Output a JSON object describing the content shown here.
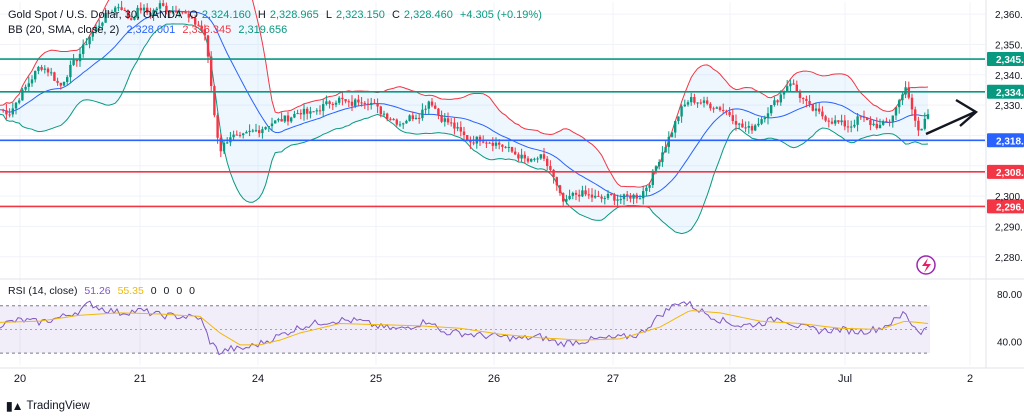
{
  "header": {
    "symbol": "Gold Spot / U.S. Dollar, 30, OANDA",
    "open_label": "O",
    "open": "2,324.160",
    "high_label": "H",
    "high": "2,328.965",
    "low_label": "L",
    "low": "2,323.150",
    "close_label": "C",
    "close": "2,328.460",
    "change": "+4.305 (+0.19%)"
  },
  "bb": {
    "label": "BB (20, SMA, close, 2)",
    "basis": "2,328.001",
    "upper": "2,336.345",
    "lower": "2,319.656",
    "colors": {
      "basis": "#2962ff",
      "upper": "#f23645",
      "lower": "#089981",
      "fill": "#2196f3"
    }
  },
  "rsi_header": {
    "label": "RSI (14, close)",
    "rsi": "51.26",
    "ma": "55.35",
    "extras": [
      "0",
      "0",
      "0",
      "0"
    ]
  },
  "watermark": "TradingView",
  "colors": {
    "up": "#089981",
    "down": "#f23645",
    "rsi": "#7e57c2",
    "rsi_ma": "#f0b90b",
    "support": "#2962ff",
    "resistance_red": "#f23645",
    "resistance_green": "#089981"
  },
  "chart_data": {
    "type": "candlestick",
    "x_ticks": [
      "20",
      "21",
      "24",
      "25",
      "26",
      "27",
      "28",
      "Jul",
      "2"
    ],
    "y_ticks": [
      2280,
      2290,
      2300,
      2310,
      2320,
      2330,
      2340,
      2350,
      2360
    ],
    "y_tick_labels": [
      "2,280.",
      "2,290.",
      "2,300.",
      "2,310.",
      "2,320.",
      "2,330.",
      "2,340.",
      "2,350.",
      "2,360."
    ],
    "ylim": [
      2273,
      2364
    ],
    "horizontal_lines": [
      {
        "label": "2,345.",
        "value": 2345.2,
        "color": "#089981"
      },
      {
        "label": "2,334.",
        "value": 2334.4,
        "color": "#089981"
      },
      {
        "label": "2,318.",
        "value": 2318.4,
        "color": "#2962ff"
      },
      {
        "label": "2,308.",
        "value": 2308.0,
        "color": "#f23645"
      },
      {
        "label": "2,296.",
        "value": 2296.6,
        "color": "#f23645"
      }
    ],
    "close_path": [
      [
        0,
        2328.5
      ],
      [
        10,
        2327.5
      ],
      [
        20,
        2333
      ],
      [
        30,
        2338
      ],
      [
        40,
        2343
      ],
      [
        50,
        2341
      ],
      [
        60,
        2336
      ],
      [
        70,
        2342
      ],
      [
        80,
        2347
      ],
      [
        90,
        2353
      ],
      [
        100,
        2357
      ],
      [
        110,
        2361
      ],
      [
        120,
        2363
      ],
      [
        130,
        2358
      ],
      [
        140,
        2362
      ],
      [
        150,
        2360
      ],
      [
        160,
        2363
      ],
      [
        170,
        2361
      ],
      [
        180,
        2362
      ],
      [
        190,
        2358
      ],
      [
        200,
        2356
      ],
      [
        205,
        2353
      ],
      [
        210,
        2340
      ],
      [
        215,
        2325
      ],
      [
        220,
        2315
      ],
      [
        230,
        2320
      ],
      [
        240,
        2319
      ],
      [
        250,
        2321
      ],
      [
        260,
        2322
      ],
      [
        270,
        2324
      ],
      [
        280,
        2325
      ],
      [
        290,
        2326
      ],
      [
        300,
        2328
      ],
      [
        310,
        2327
      ],
      [
        320,
        2329
      ],
      [
        330,
        2331
      ],
      [
        340,
        2332
      ],
      [
        350,
        2330
      ],
      [
        360,
        2332
      ],
      [
        370,
        2331
      ],
      [
        380,
        2328
      ],
      [
        390,
        2326
      ],
      [
        400,
        2324
      ],
      [
        410,
        2326
      ],
      [
        420,
        2327
      ],
      [
        430,
        2332
      ],
      [
        440,
        2326
      ],
      [
        450,
        2324
      ],
      [
        460,
        2321
      ],
      [
        470,
        2318
      ],
      [
        480,
        2319
      ],
      [
        490,
        2318
      ],
      [
        500,
        2317
      ],
      [
        510,
        2315
      ],
      [
        520,
        2313
      ],
      [
        530,
        2311
      ],
      [
        540,
        2313
      ],
      [
        550,
        2309
      ],
      [
        560,
        2300
      ],
      [
        565,
        2297
      ],
      [
        570,
        2300
      ],
      [
        580,
        2301
      ],
      [
        590,
        2300
      ],
      [
        600,
        2299
      ],
      [
        610,
        2300
      ],
      [
        620,
        2299
      ],
      [
        630,
        2300
      ],
      [
        640,
        2300
      ],
      [
        650,
        2305
      ],
      [
        660,
        2313
      ],
      [
        670,
        2320
      ],
      [
        680,
        2328
      ],
      [
        690,
        2332
      ],
      [
        700,
        2331
      ],
      [
        710,
        2330
      ],
      [
        720,
        2329
      ],
      [
        730,
        2327
      ],
      [
        740,
        2323
      ],
      [
        750,
        2322
      ],
      [
        760,
        2325
      ],
      [
        770,
        2329
      ],
      [
        780,
        2333
      ],
      [
        790,
        2338
      ],
      [
        800,
        2333
      ],
      [
        810,
        2329
      ],
      [
        820,
        2327
      ],
      [
        830,
        2325
      ],
      [
        840,
        2324
      ],
      [
        850,
        2323
      ],
      [
        860,
        2326
      ],
      [
        870,
        2324
      ],
      [
        880,
        2323
      ],
      [
        890,
        2325
      ],
      [
        900,
        2332
      ],
      [
        905,
        2337
      ],
      [
        910,
        2330
      ],
      [
        915,
        2325
      ],
      [
        920,
        2320
      ],
      [
        925,
        2326
      ],
      [
        928,
        2328
      ]
    ],
    "rsi": {
      "label": "RSI (14, close)",
      "levels": [
        80,
        40
      ],
      "band": [
        70,
        30
      ],
      "ylim": [
        20,
        90
      ],
      "path": [
        [
          0,
          54
        ],
        [
          20,
          58
        ],
        [
          40,
          56
        ],
        [
          60,
          60
        ],
        [
          80,
          66
        ],
        [
          90,
          72
        ],
        [
          100,
          68
        ],
        [
          120,
          64
        ],
        [
          140,
          66
        ],
        [
          160,
          62
        ],
        [
          180,
          61
        ],
        [
          200,
          60
        ],
        [
          210,
          40
        ],
        [
          220,
          30
        ],
        [
          230,
          34
        ],
        [
          240,
          33
        ],
        [
          260,
          38
        ],
        [
          280,
          45
        ],
        [
          300,
          52
        ],
        [
          320,
          56
        ],
        [
          340,
          58
        ],
        [
          360,
          57
        ],
        [
          380,
          52
        ],
        [
          400,
          50
        ],
        [
          420,
          55
        ],
        [
          430,
          58
        ],
        [
          440,
          48
        ],
        [
          460,
          47
        ],
        [
          480,
          45
        ],
        [
          500,
          44
        ],
        [
          520,
          42
        ],
        [
          540,
          44
        ],
        [
          560,
          38
        ],
        [
          580,
          40
        ],
        [
          600,
          42
        ],
        [
          620,
          43
        ],
        [
          640,
          46
        ],
        [
          660,
          62
        ],
        [
          680,
          74
        ],
        [
          690,
          71
        ],
        [
          700,
          66
        ],
        [
          720,
          58
        ],
        [
          740,
          53
        ],
        [
          760,
          55
        ],
        [
          780,
          60
        ],
        [
          800,
          52
        ],
        [
          820,
          49
        ],
        [
          840,
          50
        ],
        [
          860,
          48
        ],
        [
          880,
          51
        ],
        [
          900,
          60
        ],
        [
          905,
          66
        ],
        [
          910,
          56
        ],
        [
          920,
          48
        ],
        [
          928,
          51
        ]
      ],
      "ma_path": [
        [
          0,
          56
        ],
        [
          40,
          57
        ],
        [
          80,
          62
        ],
        [
          120,
          64
        ],
        [
          160,
          63
        ],
        [
          200,
          61
        ],
        [
          220,
          47
        ],
        [
          240,
          37
        ],
        [
          260,
          37
        ],
        [
          280,
          41
        ],
        [
          300,
          47
        ],
        [
          340,
          55
        ],
        [
          380,
          54
        ],
        [
          420,
          53
        ],
        [
          460,
          51
        ],
        [
          500,
          46
        ],
        [
          540,
          43
        ],
        [
          580,
          41
        ],
        [
          620,
          42
        ],
        [
          660,
          52
        ],
        [
          690,
          66
        ],
        [
          720,
          64
        ],
        [
          760,
          57
        ],
        [
          800,
          55
        ],
        [
          840,
          51
        ],
        [
          880,
          50
        ],
        [
          905,
          57
        ],
        [
          928,
          55
        ]
      ]
    }
  }
}
